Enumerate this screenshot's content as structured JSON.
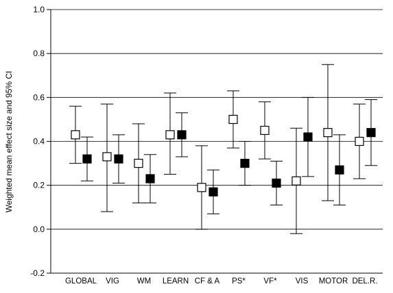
{
  "chart_data": {
    "type": "scatter",
    "title": "",
    "xlabel": "",
    "ylabel": "Weighted mean effect size and 95% CI",
    "ylim": [
      -0.2,
      1.0
    ],
    "yticks": [
      "-0.2",
      "0.0",
      "0.2",
      "0.4",
      "0.6",
      "0.8",
      "1.0"
    ],
    "grid": "horizontal",
    "legend": "none",
    "categories": [
      "GLOBAL",
      "VIG",
      "WM",
      "LEARN",
      "CF & A",
      "PS*",
      "VF*",
      "VIS",
      "MOTOR",
      "DEL.R."
    ],
    "series": [
      {
        "marker": "open-square",
        "color": "#000000",
        "values": [
          0.43,
          0.33,
          0.3,
          0.43,
          0.19,
          0.5,
          0.45,
          0.22,
          0.44,
          0.4
        ],
        "ci_lower": [
          0.3,
          0.08,
          0.12,
          0.25,
          0.0,
          0.37,
          0.32,
          -0.02,
          0.13,
          0.23
        ],
        "ci_upper": [
          0.56,
          0.57,
          0.48,
          0.62,
          0.38,
          0.63,
          0.58,
          0.46,
          0.75,
          0.57
        ]
      },
      {
        "marker": "filled-square",
        "color": "#000000",
        "values": [
          0.32,
          0.32,
          0.23,
          0.43,
          0.17,
          0.3,
          0.21,
          0.42,
          0.27,
          0.44
        ],
        "ci_lower": [
          0.22,
          0.21,
          0.12,
          0.33,
          0.07,
          0.2,
          0.11,
          0.24,
          0.11,
          0.29
        ],
        "ci_upper": [
          0.42,
          0.43,
          0.34,
          0.53,
          0.27,
          0.4,
          0.31,
          0.6,
          0.43,
          0.59
        ]
      }
    ]
  }
}
